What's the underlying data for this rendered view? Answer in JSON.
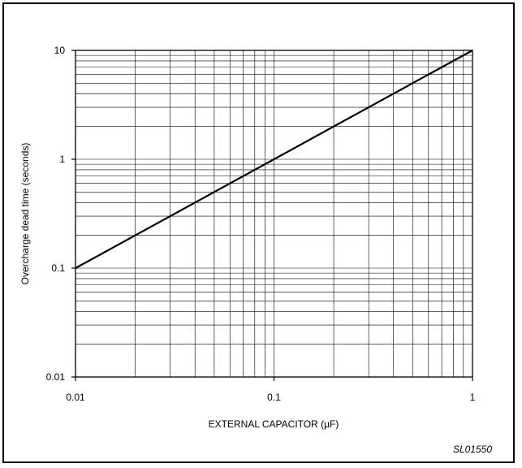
{
  "chart_data": {
    "type": "line",
    "title": "",
    "xlabel": "EXTERNAL CAPACITOR (µF)",
    "ylabel": "Overcharge dead time (seconds)",
    "x_scale": "log",
    "y_scale": "log",
    "xlim": [
      0.01,
      1
    ],
    "ylim": [
      0.01,
      10
    ],
    "x_ticks": [
      0.01,
      0.1,
      1
    ],
    "x_tick_labels": [
      "0.01",
      "0.1",
      "1"
    ],
    "y_ticks": [
      0.01,
      0.1,
      1,
      10
    ],
    "y_tick_labels": [
      "0.01",
      "0.1",
      "1",
      "10"
    ],
    "grid": true,
    "series": [
      {
        "x": [
          0.01,
          1
        ],
        "y": [
          0.1,
          10
        ]
      }
    ]
  },
  "figure_id": "SL01550",
  "colors": {
    "line": "#000000",
    "grid": "#000000",
    "frame": "#000000"
  }
}
